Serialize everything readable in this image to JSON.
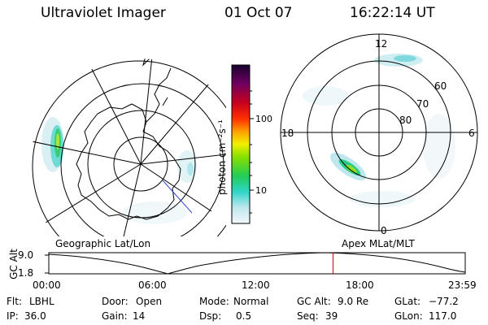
{
  "header": {
    "instrument": "Ultraviolet Imager",
    "date": "01 Oct 07",
    "time": "16:22:14 UT"
  },
  "colorbar": {
    "unit_label": "photon cm⁻²s⁻¹",
    "ticks": [
      "100",
      "10"
    ]
  },
  "polar_plot": {
    "mlt_labels": {
      "top": "12",
      "left": "18",
      "right": "6",
      "bottom": "0"
    },
    "lat_labels": [
      "60",
      "70",
      "80"
    ]
  },
  "panel_labels": {
    "left": "Geographic Lat/Lon",
    "right": "Apex MLat/MLT"
  },
  "altitude_plot": {
    "ylabel": "GC Alt",
    "yticks": [
      "9.0",
      "1.8"
    ],
    "xticks": [
      "00:00",
      "06:00",
      "12:00",
      "18:00",
      "23:59"
    ],
    "marker_hour": 16.37
  },
  "status": {
    "flt_label": "Flt:",
    "flt_value": "LBHL",
    "ip_label": "IP:",
    "ip_value": "36.0",
    "door_label": "Door:",
    "door_value": "Open",
    "gain_label": "Gain:",
    "gain_value": "14",
    "mode_label": "Mode:",
    "mode_value": "Normal",
    "dsp_label": "Dsp:",
    "dsp_value": "0.5",
    "gcalt_label": "GC Alt:",
    "gcalt_value": "9.0 Re",
    "seq_label": "Seq:",
    "seq_value": "39",
    "glat_label": "GLat:",
    "glat_value": "−77.2",
    "glon_label": "GLon:",
    "glon_value": "117.0"
  },
  "colors": {
    "marker": "#cc0000",
    "trace": "#000000"
  }
}
